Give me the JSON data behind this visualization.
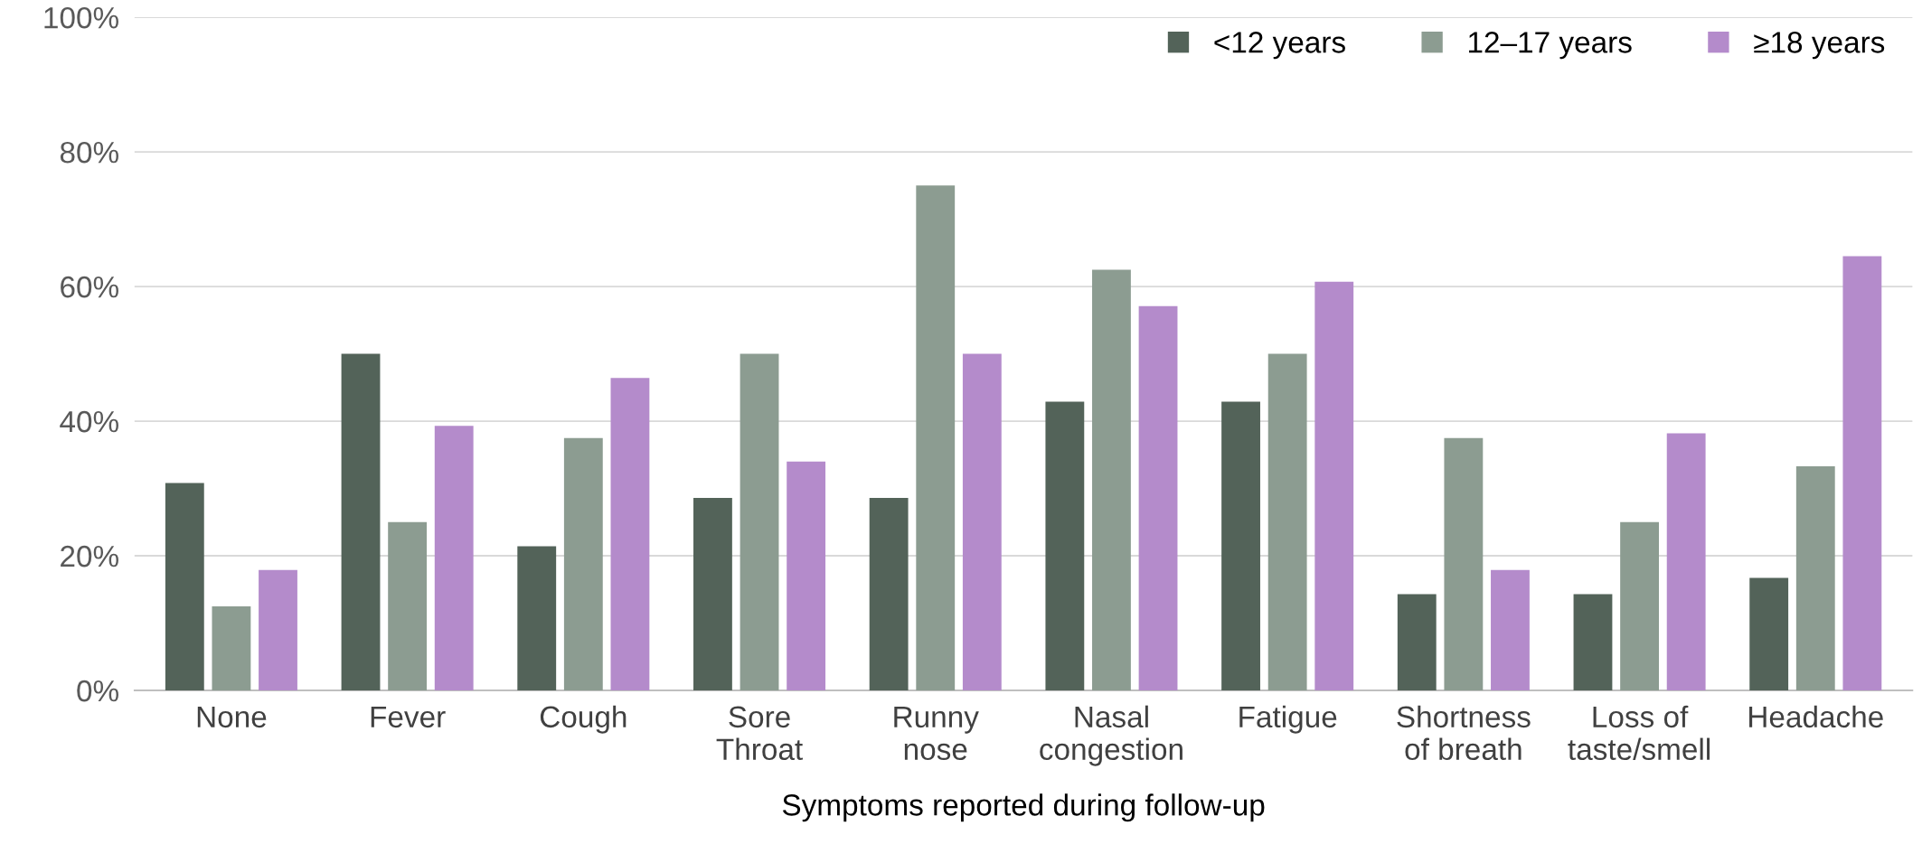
{
  "chart_data": {
    "type": "bar",
    "xlabel": "Symptoms reported during follow-up",
    "categories": [
      "None",
      "Fever",
      "Cough",
      "Sore\nThroat",
      "Runny\nnose",
      "Nasal\ncongestion",
      "Fatigue",
      "Shortness\nof breath",
      "Loss of\ntaste/smell",
      "Headache"
    ],
    "series": [
      {
        "name": "<12 years",
        "color": "#536359",
        "values": [
          30.8,
          50,
          21.4,
          28.6,
          28.6,
          42.9,
          42.9,
          14.3,
          14.3,
          16.7
        ]
      },
      {
        "name": "12–17 years",
        "color": "#8c9c91",
        "values": [
          12.5,
          25,
          37.5,
          50,
          75,
          62.5,
          50,
          37.5,
          25,
          33.3
        ]
      },
      {
        "name": "≥18 years",
        "color": "#b48bcb",
        "values": [
          17.9,
          39.3,
          46.4,
          34,
          50,
          57.1,
          60.7,
          17.9,
          38.2,
          64.5
        ]
      }
    ],
    "ylim": [
      0,
      100
    ],
    "yticks": [
      {
        "value": 0,
        "label": "0%"
      },
      {
        "value": 20,
        "label": "20%"
      },
      {
        "value": 40,
        "label": "40%"
      },
      {
        "value": 60,
        "label": "60%"
      },
      {
        "value": 80,
        "label": "80%"
      },
      {
        "value": 100,
        "label": "100%"
      }
    ],
    "grid": "y",
    "legend": "top right"
  }
}
